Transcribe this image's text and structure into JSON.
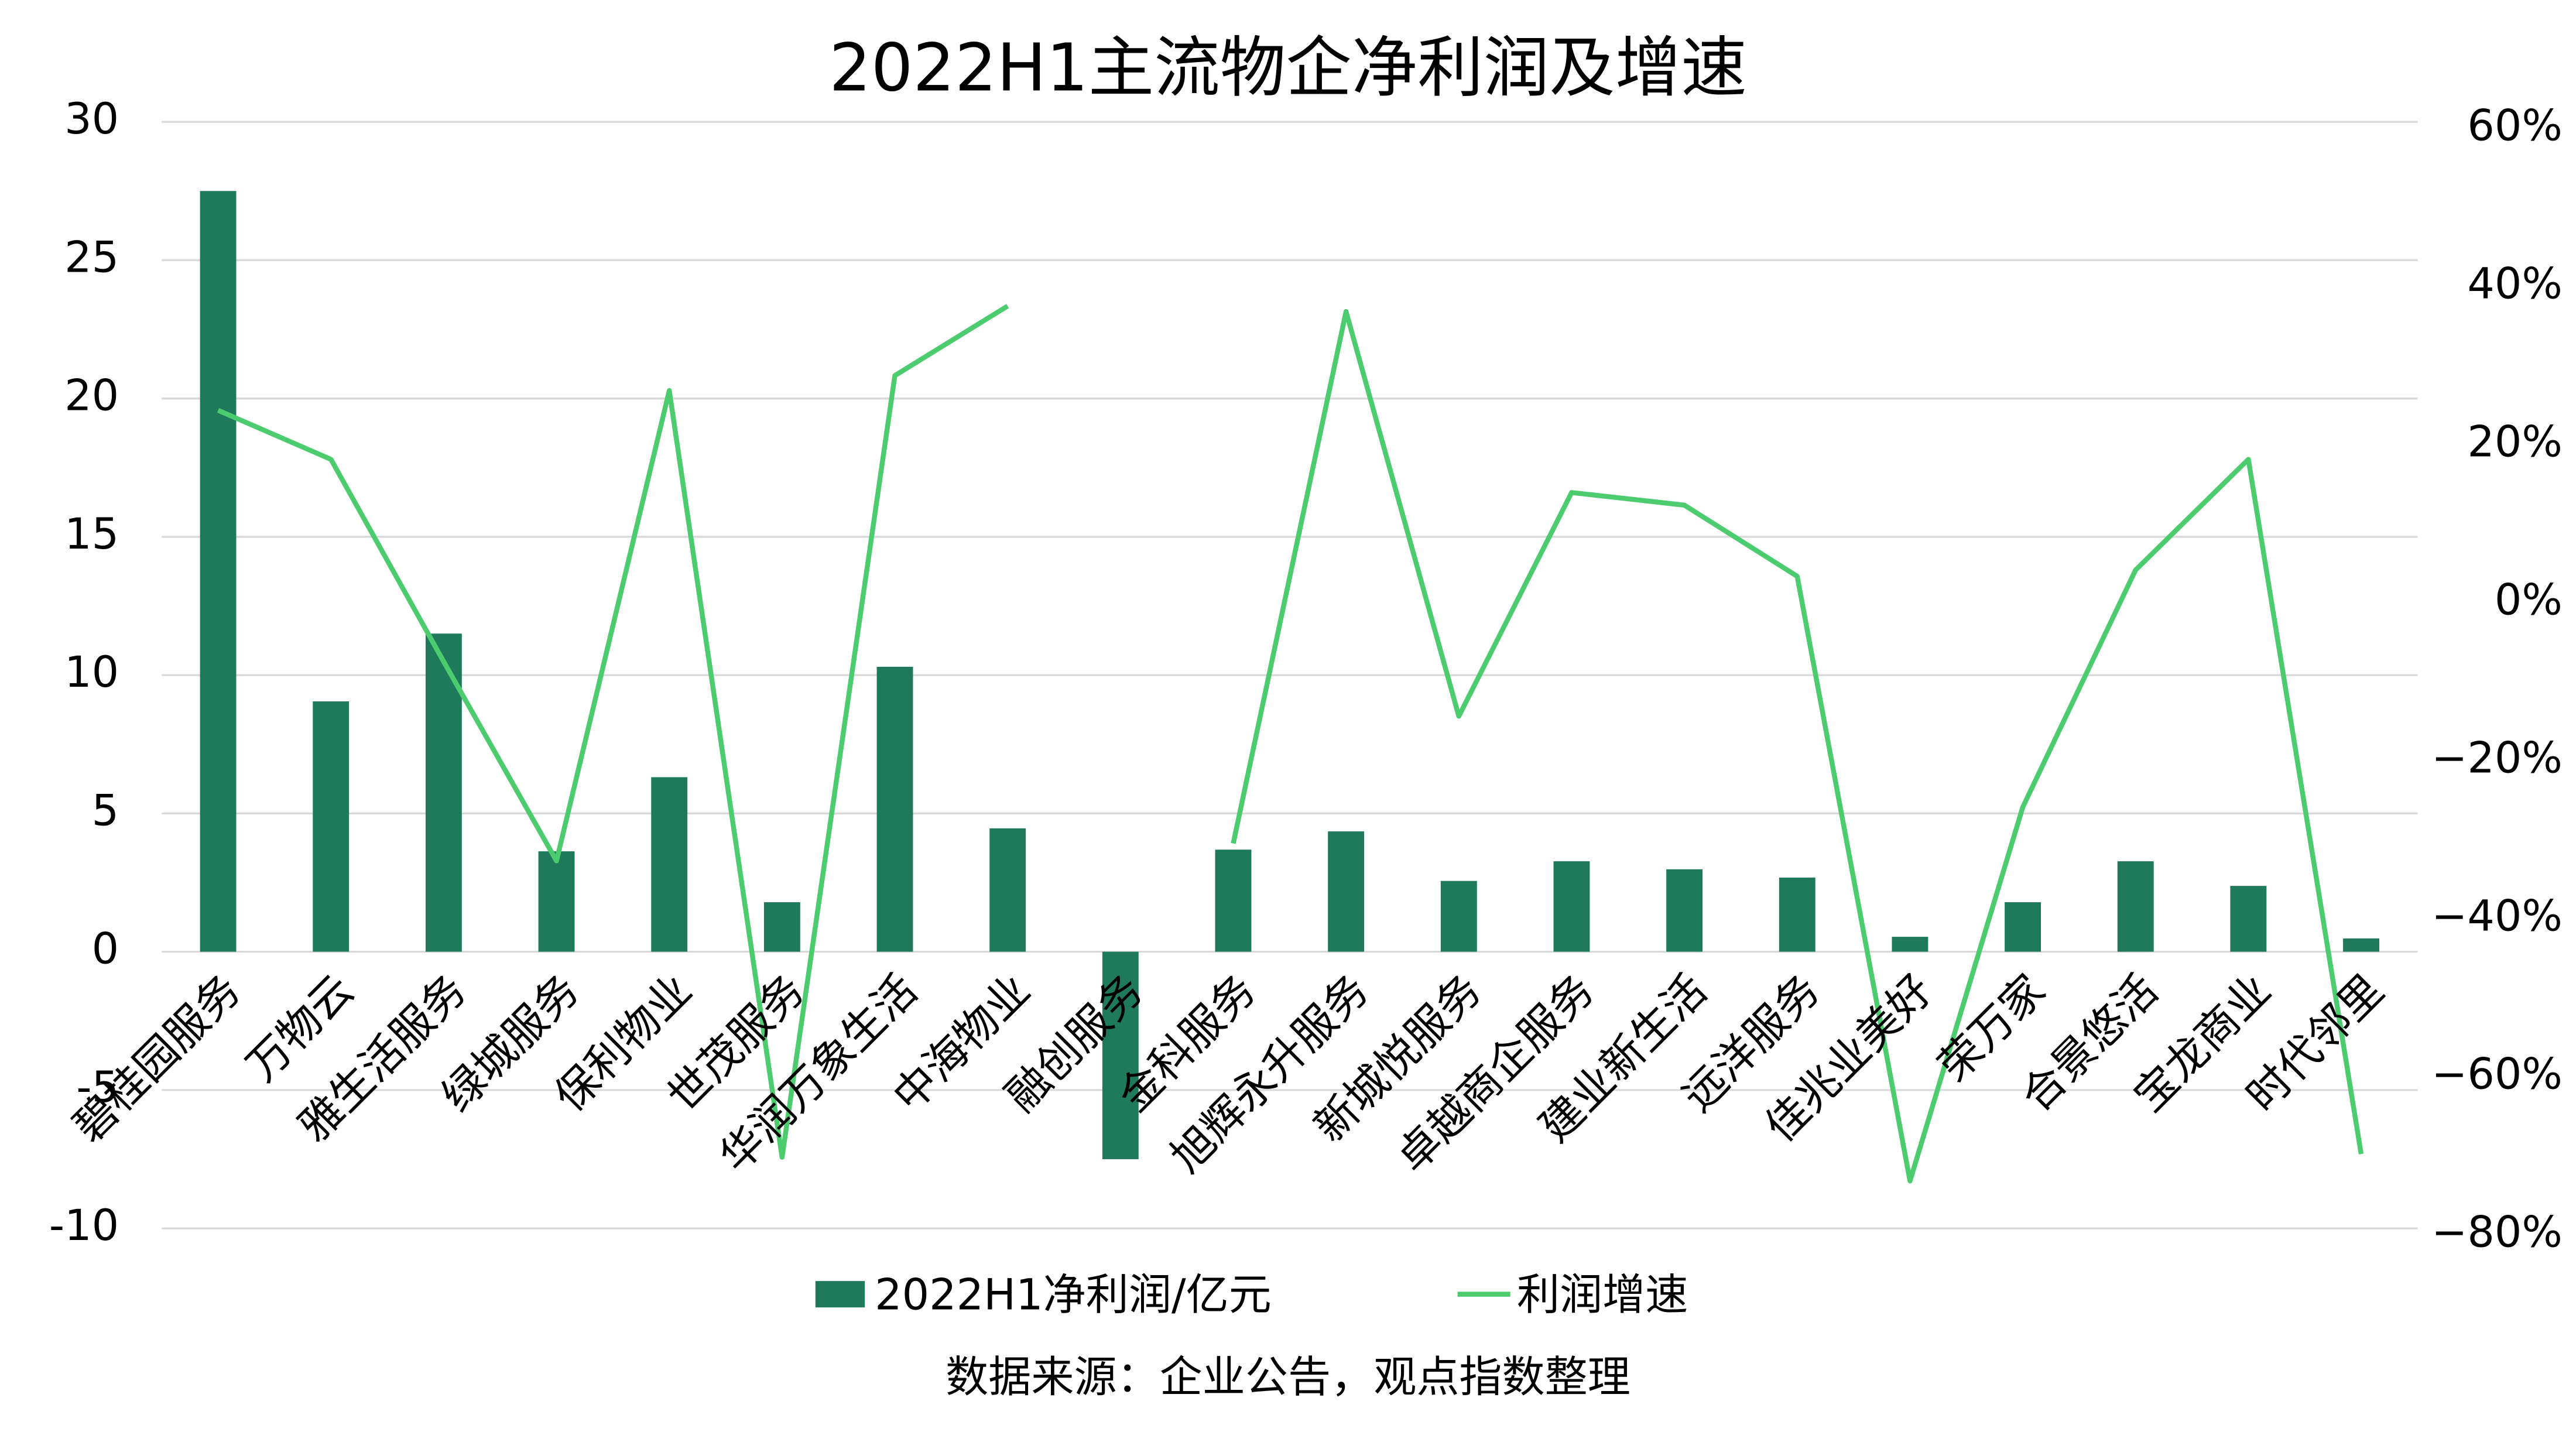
{
  "chart_data": {
    "type": "bar-line",
    "title": "2022H1主流物企净利润及增速",
    "source": "数据来源：企业公告，观点指数整理",
    "categories": [
      "碧桂园服务",
      "万物云",
      "雅生活服务",
      "绿城服务",
      "保利物业",
      "世茂服务",
      "华润万象生活",
      "中海物业",
      "融创服务",
      "金科服务",
      "旭辉永升服务",
      "新城悦服务",
      "卓越商企服务",
      "建业新生活",
      "远洋服务",
      "佳兆业美好",
      "荣万家",
      "合景悠活",
      "宝龙商业",
      "时代邻里"
    ],
    "series": [
      {
        "name": "2022H1净利润/亿元",
        "type": "bar",
        "color": "#1e7a5a",
        "values": [
          27.5,
          9.05,
          11.5,
          3.63,
          6.31,
          1.79,
          10.3,
          4.46,
          -7.5,
          3.69,
          4.35,
          2.56,
          3.27,
          2.98,
          2.68,
          0.54,
          1.79,
          3.27,
          2.38,
          0.48
        ]
      },
      {
        "name": "利润增速",
        "type": "line",
        "axis": "y2",
        "color": "#4ccc6e",
        "values": [
          23.5,
          17.3,
          -8.3,
          -33.5,
          26,
          -71,
          27.9,
          36.7,
          null,
          -31.3,
          36,
          -15.2,
          13.1,
          11.5,
          2.5,
          -74,
          -26.7,
          3.3,
          17.3,
          -70.6
        ]
      }
    ],
    "ylim": [
      -10,
      30
    ],
    "yticks": [
      -10,
      -5,
      0,
      5,
      10,
      15,
      20,
      25,
      30
    ],
    "y2lim": [
      -80,
      60
    ],
    "y2ticks": [
      {
        "value": -80,
        "label": "−80%"
      },
      {
        "value": -60,
        "label": "−60%"
      },
      {
        "value": -40,
        "label": "−40%"
      },
      {
        "value": -20,
        "label": "−20%"
      },
      {
        "value": 0,
        "label": "0%"
      },
      {
        "value": 20,
        "label": "20%"
      },
      {
        "value": 40,
        "label": "40%"
      },
      {
        "value": 60,
        "label": "60%"
      }
    ],
    "grid": true,
    "legend": "bottom"
  }
}
